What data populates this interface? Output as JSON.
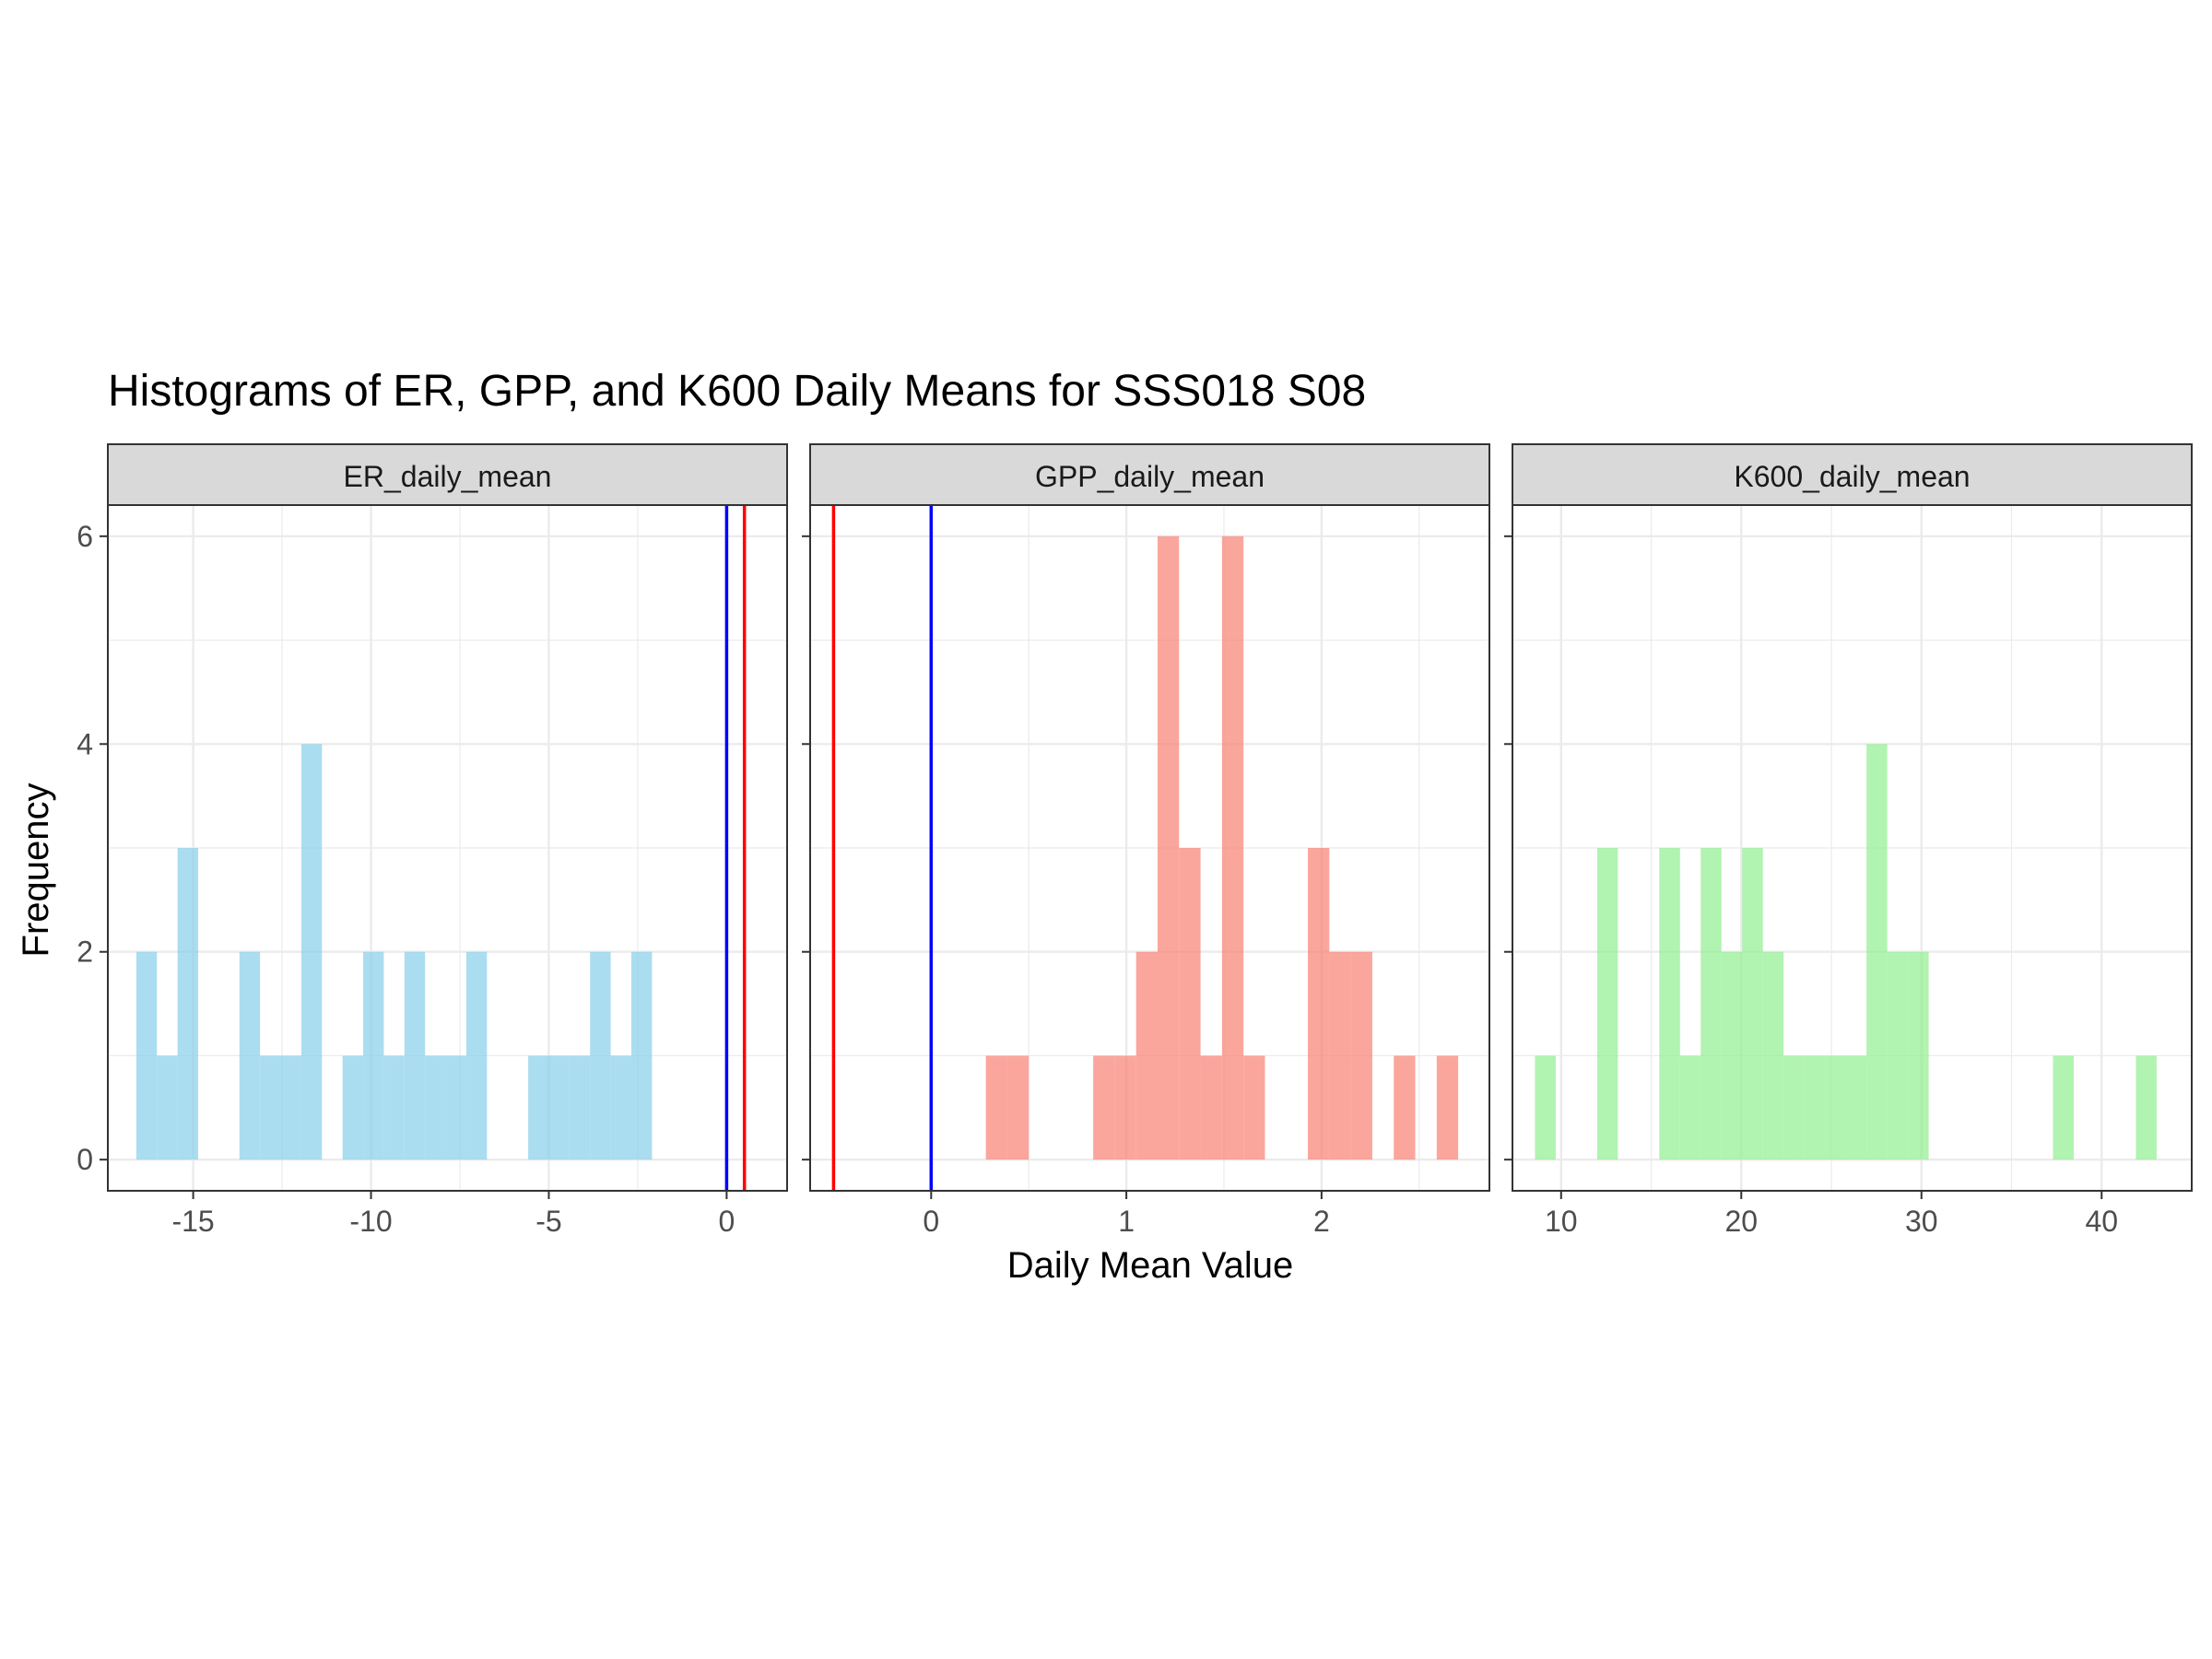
{
  "title": "Histograms of ER, GPP, and K600 Daily Means for SSS018 S08",
  "xlabel": "Daily Mean Value",
  "ylabel": "Frequency",
  "colors": {
    "ER_daily_mean": "#87CEEB",
    "GPP_daily_mean": "#FA8072",
    "K600_daily_mean": "#90EE90",
    "ref_line_red": "#FF0000",
    "ref_line_blue": "#0000FF",
    "strip_fill": "#D9D9D9",
    "grid": "#EBEBEB"
  },
  "chart_data": {
    "type": "bar",
    "subtype": "histogram",
    "facets": [
      "ER_daily_mean",
      "GPP_daily_mean",
      "K600_daily_mean"
    ],
    "ylim": [
      -0.3,
      6.3
    ],
    "y_ticks": [
      0,
      2,
      4,
      6
    ],
    "grid": true,
    "panels": [
      {
        "name": "ER_daily_mean",
        "xlim": [
          -17.4,
          1.7
        ],
        "x_ticks": [
          -15,
          -10,
          -5,
          0
        ],
        "x_tick_labels": [
          "-15",
          "-10",
          "-5",
          "0"
        ],
        "bin_width": 0.58,
        "bins": [
          {
            "x0": -16.6,
            "count": 2
          },
          {
            "x0": -16.02,
            "count": 1
          },
          {
            "x0": -15.44,
            "count": 3
          },
          {
            "x0": -13.7,
            "count": 2
          },
          {
            "x0": -13.12,
            "count": 1
          },
          {
            "x0": -12.54,
            "count": 1
          },
          {
            "x0": -11.96,
            "count": 4
          },
          {
            "x0": -10.8,
            "count": 1
          },
          {
            "x0": -10.22,
            "count": 2
          },
          {
            "x0": -9.64,
            "count": 1
          },
          {
            "x0": -9.06,
            "count": 2
          },
          {
            "x0": -8.48,
            "count": 1
          },
          {
            "x0": -7.9,
            "count": 1
          },
          {
            "x0": -7.32,
            "count": 2
          },
          {
            "x0": -5.58,
            "count": 1
          },
          {
            "x0": -5.0,
            "count": 1
          },
          {
            "x0": -4.42,
            "count": 1
          },
          {
            "x0": -3.84,
            "count": 2
          },
          {
            "x0": -3.26,
            "count": 1
          },
          {
            "x0": -2.68,
            "count": 2
          }
        ],
        "ref_lines": [
          {
            "x": 0,
            "color": "blue"
          },
          {
            "x": 0.5,
            "color": "red"
          }
        ]
      },
      {
        "name": "GPP_daily_mean",
        "xlim": [
          -0.62,
          2.86
        ],
        "x_ticks": [
          0,
          1,
          2
        ],
        "x_tick_labels": [
          "0",
          "1",
          "2"
        ],
        "bin_width": 0.11,
        "bins": [
          {
            "x0": 0.28,
            "count": 1
          },
          {
            "x0": 0.39,
            "count": 1
          },
          {
            "x0": 0.83,
            "count": 1
          },
          {
            "x0": 0.94,
            "count": 1
          },
          {
            "x0": 1.05,
            "count": 2
          },
          {
            "x0": 1.16,
            "count": 6
          },
          {
            "x0": 1.27,
            "count": 3
          },
          {
            "x0": 1.38,
            "count": 1
          },
          {
            "x0": 1.49,
            "count": 6
          },
          {
            "x0": 1.6,
            "count": 1
          },
          {
            "x0": 1.93,
            "count": 3
          },
          {
            "x0": 2.04,
            "count": 2
          },
          {
            "x0": 2.15,
            "count": 2
          },
          {
            "x0": 2.37,
            "count": 1
          },
          {
            "x0": 2.59,
            "count": 1
          }
        ],
        "ref_lines": [
          {
            "x": -0.5,
            "color": "red"
          },
          {
            "x": 0,
            "color": "blue"
          }
        ]
      },
      {
        "name": "K600_daily_mean",
        "xlim": [
          7.3,
          45.0
        ],
        "x_ticks": [
          10,
          20,
          30,
          40
        ],
        "x_tick_labels": [
          "10",
          "20",
          "30",
          "40"
        ],
        "bin_width": 1.15,
        "bins": [
          {
            "x0": 8.55,
            "count": 1
          },
          {
            "x0": 12.0,
            "count": 3
          },
          {
            "x0": 15.45,
            "count": 3
          },
          {
            "x0": 16.6,
            "count": 1
          },
          {
            "x0": 17.75,
            "count": 3
          },
          {
            "x0": 18.9,
            "count": 2
          },
          {
            "x0": 20.05,
            "count": 3
          },
          {
            "x0": 21.2,
            "count": 2
          },
          {
            "x0": 22.35,
            "count": 1
          },
          {
            "x0": 23.5,
            "count": 1
          },
          {
            "x0": 24.65,
            "count": 1
          },
          {
            "x0": 25.8,
            "count": 1
          },
          {
            "x0": 26.95,
            "count": 4
          },
          {
            "x0": 28.1,
            "count": 2
          },
          {
            "x0": 29.25,
            "count": 2
          },
          {
            "x0": 37.3,
            "count": 1
          },
          {
            "x0": 41.9,
            "count": 1
          }
        ],
        "ref_lines": []
      }
    ]
  }
}
